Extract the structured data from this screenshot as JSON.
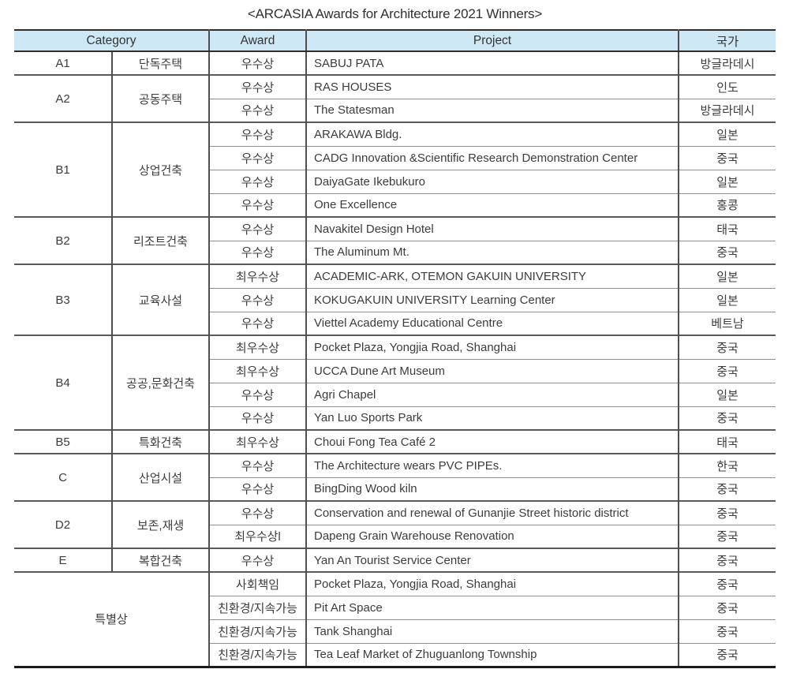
{
  "title": "<ARCASIA Awards for Architecture 2021 Winners>",
  "colors": {
    "header_bg": "#cfe8f6"
  },
  "table": {
    "headers": {
      "category": "Category",
      "award": "Award",
      "project": "Project",
      "country": "국가"
    },
    "groups": [
      {
        "code": "A1",
        "name": "단독주택",
        "merged": false,
        "rows": [
          {
            "award": "우수상",
            "project": "SABUJ PATA",
            "country": "방글라데시"
          }
        ]
      },
      {
        "code": "A2",
        "name": "공동주택",
        "merged": false,
        "rows": [
          {
            "award": "우수상",
            "project": "RAS HOUSES",
            "country": "인도"
          },
          {
            "award": "우수상",
            "project": "The Statesman",
            "country": "방글라데시"
          }
        ]
      },
      {
        "code": "B1",
        "name": "상업건축",
        "merged": false,
        "rows": [
          {
            "award": "우수상",
            "project": "ARAKAWA Bldg.",
            "country": "일본"
          },
          {
            "award": "우수상",
            "project": "CADG Innovation &Scientific Research Demonstration Center",
            "country": "중국"
          },
          {
            "award": "우수상",
            "project": "DaiyaGate Ikebukuro",
            "country": "일본"
          },
          {
            "award": "우수상",
            "project": "One Excellence",
            "country": "홍콩"
          }
        ]
      },
      {
        "code": "B2",
        "name": "리조트건축",
        "merged": false,
        "rows": [
          {
            "award": "우수상",
            "project": "Navakitel Design Hotel",
            "country": "태국"
          },
          {
            "award": "우수상",
            "project": "The Aluminum Mt.",
            "country": "중국"
          }
        ]
      },
      {
        "code": "B3",
        "name": "교육사설",
        "merged": false,
        "rows": [
          {
            "award": "최우수상",
            "project": "ACADEMIC-ARK, OTEMON GAKUIN UNIVERSITY",
            "country": "일본"
          },
          {
            "award": "우수상",
            "project": "KOKUGAKUIN UNIVERSITY Learning Center",
            "country": "일본"
          },
          {
            "award": "우수상",
            "project": "Viettel Academy Educational Centre",
            "country": "베트남"
          }
        ]
      },
      {
        "code": "B4",
        "name": "공공,문화건축",
        "merged": false,
        "rows": [
          {
            "award": "최우수상",
            "project": "Pocket Plaza, Yongjia Road, Shanghai",
            "country": "중국"
          },
          {
            "award": "최우수상",
            "project": "UCCA Dune Art Museum",
            "country": "중국"
          },
          {
            "award": "우수상",
            "project": "Agri Chapel",
            "country": "일본"
          },
          {
            "award": "우수상",
            "project": "Yan Luo Sports Park",
            "country": "중국"
          }
        ]
      },
      {
        "code": "B5",
        "name": "특화건축",
        "merged": false,
        "rows": [
          {
            "award": "최우수상",
            "project": "Choui Fong Tea Café 2",
            "country": "태국"
          }
        ]
      },
      {
        "code": "C",
        "name": "산업시설",
        "merged": false,
        "rows": [
          {
            "award": "우수상",
            "project": "The Architecture wears PVC PIPEs.",
            "country": "한국"
          },
          {
            "award": "우수상",
            "project": "BingDing Wood kiln",
            "country": "중국"
          }
        ]
      },
      {
        "code": "D2",
        "name": "보존,재생",
        "merged": false,
        "rows": [
          {
            "award": "우수상",
            "project": "Conservation and renewal of Gunanjie Street historic district",
            "country": "중국"
          },
          {
            "award": "최우수상l",
            "project": "Dapeng Grain Warehouse Renovation",
            "country": "중국"
          }
        ]
      },
      {
        "code": "E",
        "name": "복합건축",
        "merged": false,
        "rows": [
          {
            "award": "우수상",
            "project": "Yan An Tourist Service Center",
            "country": "중국"
          }
        ]
      },
      {
        "code": "특별상",
        "name": "",
        "merged": true,
        "rows": [
          {
            "award": "사회책임",
            "project": "Pocket Plaza, Yongjia Road, Shanghai",
            "country": "중국"
          },
          {
            "award": "친환경/지속가능",
            "project": "Pit Art Space",
            "country": "중국"
          },
          {
            "award": "친환경/지속가능",
            "project": "Tank Shanghai",
            "country": "중국"
          },
          {
            "award": "친환경/지속가능",
            "project": "Tea Leaf Market of Zhuguanlong Township",
            "country": "중국"
          }
        ]
      }
    ]
  }
}
